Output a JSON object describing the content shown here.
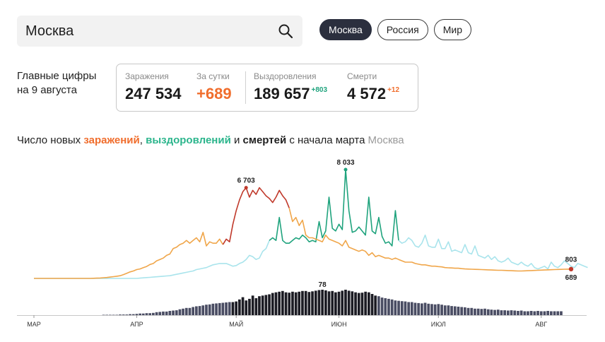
{
  "search": {
    "value": "Москва"
  },
  "region_tabs": [
    "Москва",
    "Россия",
    "Мир"
  ],
  "headline": {
    "line1": "Главные цифры",
    "line2": "на 9 августа"
  },
  "stats": {
    "infections": {
      "label": "Заражения",
      "value": "247 534"
    },
    "daily": {
      "label": "За сутки",
      "value": "+689"
    },
    "recoveries": {
      "label": "Выздоровления",
      "value": "189 657",
      "delta": "+803"
    },
    "deaths": {
      "label": "Смерти",
      "value": "4 572",
      "delta": "+12"
    }
  },
  "chart_title": {
    "prefix": "Число новых ",
    "infections": "заражений",
    "sep1": ", ",
    "recoveries": "выздоровлений",
    "sep2": " и ",
    "deaths": "смертей",
    "suffix": " с начала марта",
    "region": "Москва"
  },
  "colors": {
    "infections": "#f0a64a",
    "infections_peak": "#c0392b",
    "recoveries": "#a9e4ec",
    "recoveries_peak": "#1fa37d",
    "deaths_bars": "#4a4d63",
    "deaths_peak_bars": "#1c1c24"
  },
  "chart_data": {
    "type": "line",
    "x_start": "2020-03-01",
    "x_ticks": [
      {
        "label": "МАР",
        "day": 0
      },
      {
        "label": "АПР",
        "day": 31
      },
      {
        "label": "МАЙ",
        "day": 61
      },
      {
        "label": "ИЮН",
        "day": 92
      },
      {
        "label": "ИЮЛ",
        "day": 122
      },
      {
        "label": "АВГ",
        "day": 153
      }
    ],
    "series": [
      {
        "name": "заражения",
        "values": [
          0,
          0,
          0,
          0,
          0,
          0,
          0,
          0,
          0,
          0,
          0,
          0,
          0,
          0,
          0,
          0,
          0,
          0,
          10,
          20,
          30,
          50,
          70,
          100,
          130,
          160,
          200,
          280,
          380,
          480,
          550,
          650,
          700,
          800,
          880,
          1030,
          1100,
          1300,
          1400,
          1500,
          1700,
          1800,
          2200,
          2300,
          2500,
          2600,
          2800,
          2600,
          2800,
          3000,
          2700,
          3400,
          2400,
          2700,
          2600,
          2600,
          2900,
          2500,
          2900,
          2700,
          4000,
          5000,
          5800,
          6400,
          6700,
          6000,
          6500,
          6200,
          6700,
          6400,
          6100,
          5900,
          5600,
          6000,
          6500,
          6100,
          5800,
          5200,
          4200,
          4500,
          3900,
          4300,
          3200,
          3000,
          3000,
          2900,
          2800,
          2700,
          3200,
          2900,
          2800,
          2700,
          2600,
          2400,
          2800,
          2300,
          2200,
          2100,
          2000,
          2100,
          2000,
          1700,
          1900,
          1600,
          1700,
          1600,
          1500,
          1500,
          1400,
          1500,
          1400,
          1300,
          1200,
          1200,
          1200,
          1100,
          1050,
          1000,
          1000,
          950,
          900,
          900,
          870,
          850,
          800,
          780,
          770,
          750,
          750,
          720,
          700,
          690,
          680,
          670,
          660,
          650,
          640,
          630,
          620,
          610,
          600,
          600,
          590,
          580,
          570,
          560,
          550,
          550,
          560,
          570,
          580,
          590,
          600,
          610,
          620,
          630,
          640,
          650,
          660,
          670,
          680,
          685,
          689
        ],
        "label_max": "6 703",
        "label_last": "689"
      },
      {
        "name": "выздоровления",
        "values": [
          0,
          0,
          0,
          0,
          0,
          0,
          0,
          0,
          0,
          0,
          0,
          0,
          0,
          0,
          0,
          0,
          0,
          0,
          0,
          0,
          0,
          0,
          0,
          0,
          0,
          0,
          0,
          0,
          0,
          0,
          0,
          0,
          20,
          40,
          60,
          80,
          100,
          120,
          140,
          160,
          180,
          200,
          250,
          300,
          350,
          400,
          450,
          500,
          550,
          650,
          700,
          750,
          800,
          900,
          1000,
          1050,
          1100,
          1100,
          1100,
          1000,
          900,
          950,
          1100,
          1200,
          1400,
          1700,
          1600,
          1400,
          1500,
          2000,
          2200,
          2800,
          3000,
          2800,
          4500,
          2800,
          2600,
          2600,
          2800,
          3000,
          2900,
          3200,
          3000,
          2700,
          2800,
          2700,
          4200,
          3000,
          3500,
          6000,
          3700,
          3500,
          4000,
          3600,
          8033,
          5000,
          3400,
          3500,
          3800,
          3500,
          3200,
          6000,
          3500,
          3300,
          4500,
          3100,
          2600,
          2700,
          2400,
          5000,
          2800,
          2600,
          2700,
          3000,
          2800,
          2400,
          2300,
          2600,
          3200,
          2400,
          2300,
          2300,
          2900,
          2200,
          2200,
          2700,
          2000,
          2100,
          2000,
          1900,
          2500,
          1900,
          1800,
          2400,
          1700,
          1600,
          1500,
          1700,
          1400,
          1600,
          1300,
          1200,
          1300,
          1500,
          1200,
          1100,
          1000,
          1200,
          1000,
          900,
          1100,
          800,
          700,
          800,
          900,
          700,
          1200,
          900,
          800,
          1000,
          1300,
          1100,
          900,
          800,
          1100,
          1000,
          900,
          803
        ],
        "label_max": "8 033",
        "label_last": "803"
      },
      {
        "name": "смерти",
        "values": [
          0,
          0,
          0,
          0,
          0,
          0,
          0,
          0,
          0,
          0,
          0,
          0,
          0,
          0,
          0,
          0,
          0,
          0,
          0,
          0,
          0,
          1,
          1,
          1,
          1,
          1,
          2,
          2,
          2,
          3,
          3,
          4,
          5,
          5,
          6,
          6,
          7,
          9,
          10,
          11,
          11,
          13,
          14,
          15,
          18,
          20,
          22,
          22,
          25,
          27,
          28,
          30,
          32,
          33,
          35,
          36,
          37,
          38,
          39,
          40,
          40,
          42,
          48,
          55,
          45,
          50,
          60,
          52,
          58,
          60,
          62,
          64,
          68,
          70,
          72,
          74,
          70,
          69,
          72,
          70,
          72,
          74,
          74,
          71,
          73,
          75,
          77,
          78,
          76,
          73,
          74,
          70,
          72,
          75,
          78,
          75,
          73,
          70,
          68,
          69,
          72,
          70,
          65,
          60,
          58,
          54,
          52,
          50,
          48,
          45,
          44,
          43,
          42,
          40,
          40,
          38,
          37,
          36,
          38,
          35,
          34,
          33,
          34,
          32,
          30,
          30,
          28,
          27,
          26,
          25,
          24,
          22,
          22,
          20,
          20,
          19,
          20,
          18,
          17,
          16,
          17,
          15,
          15,
          14,
          15,
          14,
          13,
          14,
          12,
          12,
          13,
          12,
          13,
          12,
          12,
          13,
          12,
          12,
          12,
          12
        ],
        "label_max": "78",
        "label_last": "12"
      }
    ]
  }
}
